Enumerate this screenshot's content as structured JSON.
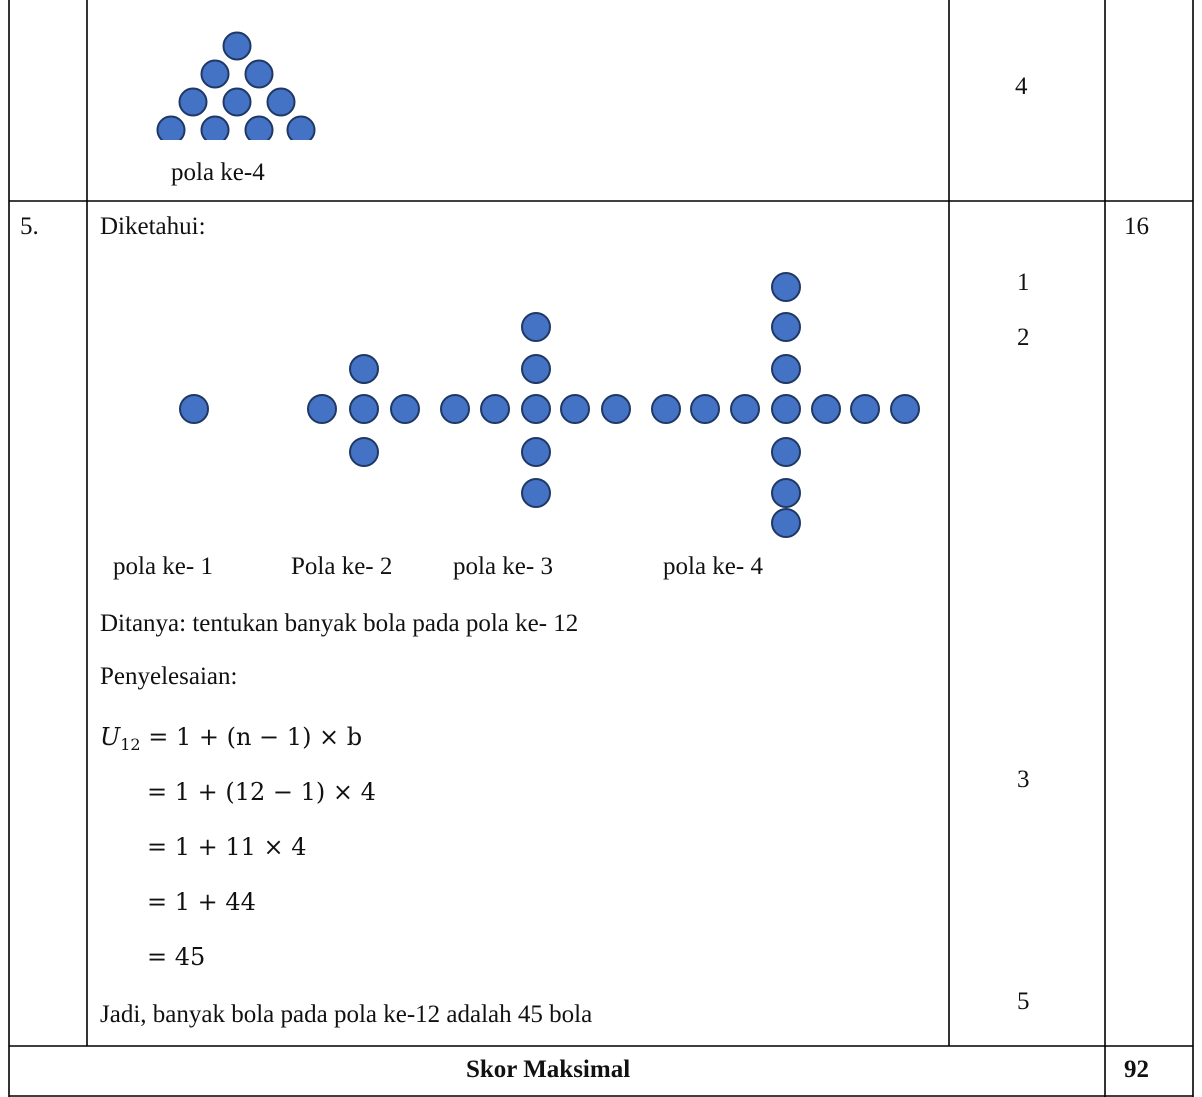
{
  "top_row": {
    "caption": "pola ke-4",
    "score": "4"
  },
  "question5": {
    "number": "5.",
    "known_label": "Diketahui:",
    "max_score": "16",
    "pattern_captions": [
      "pola ke- 1",
      "Pola ke- 2",
      "pola ke- 3",
      "pola ke- 4"
    ],
    "asked": "Ditanya: tentukan banyak bola pada pola ke- 12",
    "solution_label": "Penyelesaian:",
    "formula": {
      "lhs_symbol": "U",
      "lhs_subscript": "12",
      "line1_rhs": "= 1 + (n − 1) × b",
      "line2": "= 1 + (12 − 1) × 4",
      "line3": "= 1 + 11 × 4",
      "line4": "= 1 + 44",
      "line5": "= 45"
    },
    "conclusion": "Jadi, banyak bola pada pola ke-12 adalah 45 bola",
    "step_scores": [
      "1",
      "2",
      "3",
      "5"
    ]
  },
  "footer": {
    "label": "Skor Maksimal",
    "total": "92"
  },
  "colors": {
    "ball_fill": "#4472C4",
    "ball_stroke": "#1F3864",
    "border": "#000000"
  }
}
